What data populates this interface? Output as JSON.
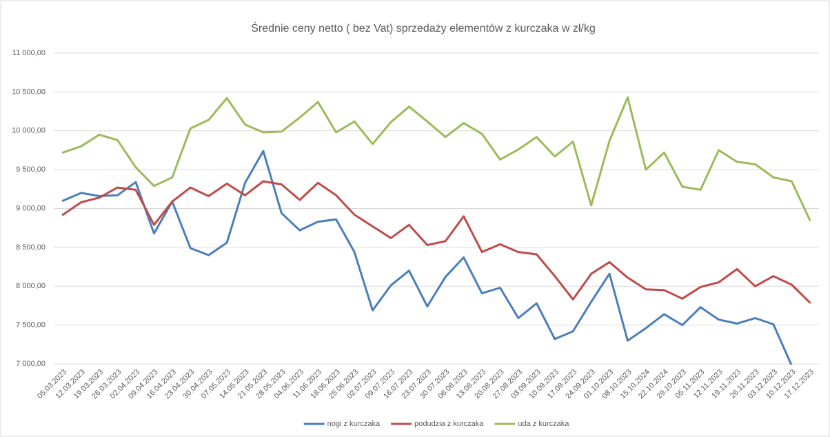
{
  "chart_data": {
    "type": "line",
    "title": "Średnie ceny netto ( bez Vat) sprzedaży elementów z kurczaka w zł/kg",
    "categories": [
      "05.03.2023",
      "12.03.2023",
      "19.03.2023",
      "26.03.2023",
      "02.04.2023",
      "09.04.2023",
      "16.04.2023",
      "23.04.2023",
      "30.04.2023",
      "07.05.2023",
      "14.05.2023",
      "21.05.2023",
      "28.05.2023",
      "04.06.2023",
      "11.06.2023",
      "18.06.2023",
      "25.06.2023",
      "02.07.2023",
      "09.07.2023",
      "16.07.2023",
      "23.07.2023",
      "30.07.2023",
      "06.08.2023",
      "13.08.2023",
      "20.08.2023",
      "27.08.2023",
      "03.09.2023",
      "10.09.2023",
      "17.09.2023",
      "24.09.2023",
      "01.10.2023",
      "08.10.2023",
      "15.10.2024",
      "22.10.2024",
      "29.10.2023",
      "05.11.2023",
      "12.11.2023",
      "19.11.2023",
      "26.11.2023",
      "03.12.2023",
      "10.12.2023",
      "17.12.2023"
    ],
    "series": [
      {
        "name": "nogi z kurczaka",
        "color": "#4a7ebb",
        "values": [
          9100,
          9200,
          9160,
          9170,
          9340,
          8680,
          9090,
          8490,
          8400,
          8560,
          9330,
          9740,
          8940,
          8720,
          8830,
          8860,
          8440,
          7690,
          8010,
          8200,
          7740,
          8120,
          8370,
          7910,
          7980,
          7590,
          7780,
          7320,
          7420,
          7800,
          8160,
          7300,
          7460,
          7640,
          7500,
          7730,
          7570,
          7520,
          7590,
          7510,
          6980,
          null
        ]
      },
      {
        "name": "podudzia z kurczaka",
        "color": "#be4b48",
        "values": [
          8920,
          9080,
          9140,
          9270,
          9240,
          8790,
          9090,
          9270,
          9160,
          9320,
          9170,
          9350,
          9310,
          9110,
          9330,
          9170,
          8920,
          8770,
          8620,
          8790,
          8530,
          8580,
          8900,
          8440,
          8540,
          8440,
          8410,
          8130,
          7830,
          8160,
          8310,
          8110,
          7960,
          7950,
          7840,
          7990,
          8050,
          8220,
          8000,
          8130,
          8020,
          7790
        ]
      },
      {
        "name": "uda z kurczaka",
        "color": "#9bbb59",
        "values": [
          9720,
          9800,
          9950,
          9880,
          9530,
          9290,
          9400,
          10030,
          10140,
          10420,
          10080,
          9980,
          9990,
          10170,
          10370,
          9980,
          10120,
          9830,
          10110,
          10310,
          10120,
          9920,
          10100,
          9960,
          9630,
          9760,
          9920,
          9670,
          9860,
          9040,
          9870,
          10430,
          9500,
          9720,
          9280,
          9240,
          9750,
          9600,
          9570,
          9400,
          9350,
          8850
        ]
      }
    ],
    "ylim": [
      7000,
      11000
    ],
    "yticks": [
      {
        "value": 7000,
        "label": "7 000,00"
      },
      {
        "value": 7500,
        "label": "7 500,00"
      },
      {
        "value": 8000,
        "label": "8 000,00"
      },
      {
        "value": 8500,
        "label": "8 500,00"
      },
      {
        "value": 9000,
        "label": "9 000,00"
      },
      {
        "value": 9500,
        "label": "9 500,00"
      },
      {
        "value": 10000,
        "label": "10 000,00"
      },
      {
        "value": 10500,
        "label": "10 500,00"
      },
      {
        "value": 11000,
        "label": "11 000,00"
      }
    ],
    "grid": true,
    "legend": "bottom"
  }
}
